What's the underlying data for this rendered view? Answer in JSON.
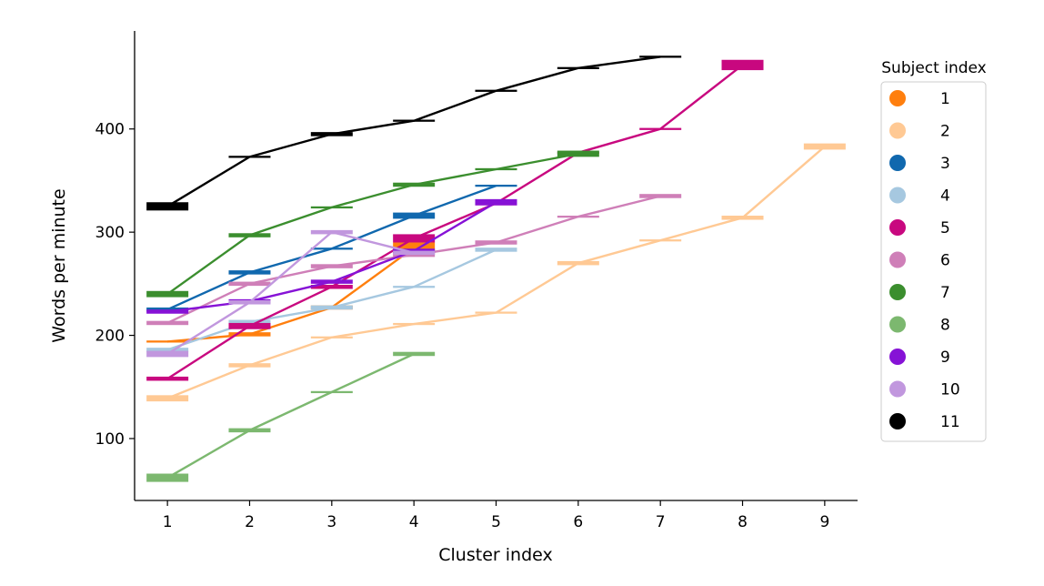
{
  "chart_data": {
    "type": "line",
    "title": "",
    "xlabel": "Cluster index",
    "ylabel": "Words per minute",
    "xlim": [
      0.6,
      9.4
    ],
    "ylim": [
      40,
      495
    ],
    "x_ticks": [
      1,
      2,
      3,
      4,
      5,
      6,
      7,
      8,
      9
    ],
    "y_ticks": [
      100,
      200,
      300,
      400
    ],
    "grid": false,
    "legend": {
      "title": "Subject index",
      "placement": "right"
    },
    "series": [
      {
        "name": "1",
        "color": "#ff7f0e",
        "x": [
          1,
          2,
          3,
          4
        ],
        "y": [
          194,
          201,
          227,
          285
        ],
        "err": [
          1,
          2,
          2,
          5
        ]
      },
      {
        "name": "2",
        "color": "#ffc994",
        "x": [
          1,
          2,
          3,
          4,
          5,
          6,
          7,
          8,
          9
        ],
        "y": [
          139,
          171,
          198,
          211,
          222,
          270,
          292,
          314,
          383
        ],
        "err": [
          3,
          2,
          1,
          1,
          1,
          2,
          1,
          2,
          3
        ]
      },
      {
        "name": "3",
        "color": "#1068ae",
        "x": [
          1,
          2,
          3,
          4,
          5
        ],
        "y": [
          225,
          261,
          284,
          316,
          345
        ],
        "err": [
          2,
          2,
          1,
          3,
          1
        ]
      },
      {
        "name": "4",
        "color": "#a6c8e0",
        "x": [
          1,
          2,
          3,
          4,
          5
        ],
        "y": [
          186,
          213,
          227,
          247,
          283
        ],
        "err": [
          2,
          2,
          2,
          1,
          2
        ]
      },
      {
        "name": "5",
        "color": "#c8087f",
        "x": [
          1,
          2,
          3,
          4,
          5,
          6,
          7,
          8
        ],
        "y": [
          158,
          209,
          247,
          294,
          328,
          377,
          400,
          462
        ],
        "err": [
          2,
          3,
          2,
          4,
          2,
          1,
          1,
          5
        ]
      },
      {
        "name": "6",
        "color": "#cf7fb8",
        "x": [
          1,
          2,
          3,
          4,
          5,
          6,
          7
        ],
        "y": [
          212,
          250,
          267,
          278,
          290,
          315,
          335
        ],
        "err": [
          2,
          2,
          2,
          2,
          2,
          1,
          2
        ]
      },
      {
        "name": "7",
        "color": "#3b8e2e",
        "x": [
          1,
          2,
          3,
          4,
          5,
          6
        ],
        "y": [
          240,
          297,
          324,
          346,
          361,
          376
        ],
        "err": [
          3,
          2,
          1,
          2,
          1,
          3
        ]
      },
      {
        "name": "8",
        "color": "#7cb86f",
        "x": [
          1,
          2,
          3,
          4
        ],
        "y": [
          62,
          108,
          145,
          182
        ],
        "err": [
          4,
          2,
          1,
          2
        ]
      },
      {
        "name": "9",
        "color": "#8612d6",
        "x": [
          1,
          2,
          3,
          4,
          5
        ],
        "y": [
          223,
          233,
          252,
          282,
          329
        ],
        "err": [
          2,
          2,
          2,
          2,
          3
        ]
      },
      {
        "name": "10",
        "color": "#c197de",
        "x": [
          1,
          2,
          3,
          4
        ],
        "y": [
          182,
          232,
          300,
          280
        ],
        "err": [
          3,
          2,
          2,
          2
        ]
      },
      {
        "name": "11",
        "color": "#000000",
        "x": [
          1,
          2,
          3,
          4,
          5,
          6,
          7
        ],
        "y": [
          325,
          373,
          395,
          408,
          437,
          459,
          470
        ],
        "err": [
          4,
          1,
          2,
          1,
          1,
          1,
          1
        ]
      }
    ]
  }
}
